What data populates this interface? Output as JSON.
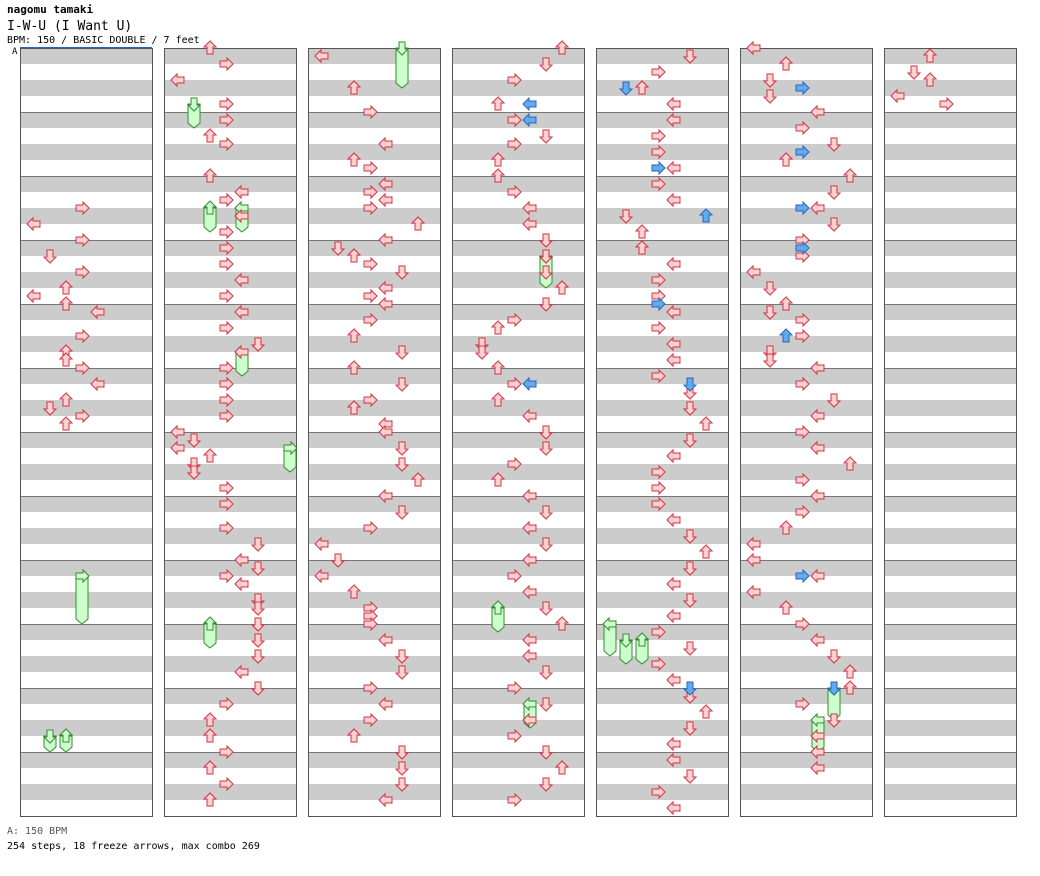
{
  "header": {
    "artist": "nagomu tamaki",
    "title": "I-W-U (I Want U)",
    "meta": "BPM: 150 / BASIC DOUBLE / 7 feet"
  },
  "bpm_marker": "A",
  "footer": {
    "bpm_legend": "A: 150 BPM",
    "stats": "254 steps, 18 freeze arrows, max combo 269"
  },
  "colors": {
    "stripe": "#cccccc",
    "border": "#555555",
    "arrow_fill": "#ffd0d0",
    "arrow_stroke": "#cc3344",
    "blue_fill": "#66aaee",
    "blue_stroke": "#2266bb",
    "freeze_fill": "#ccffcc",
    "freeze_stroke": "#338833"
  },
  "chart_data": {
    "type": "step-chart",
    "columns": 7,
    "measures_per_column": 12,
    "lanes": [
      "P1-Left",
      "P1-Down",
      "P1-Up",
      "P1-Right",
      "P2-Left",
      "P2-Down",
      "P2-Up",
      "P2-Right"
    ],
    "notes": [
      [
        0,
        20,
        3
      ],
      [
        0,
        22,
        0
      ],
      [
        0,
        24,
        3
      ],
      [
        0,
        26,
        1
      ],
      [
        0,
        28,
        3
      ],
      [
        0,
        30,
        2
      ],
      [
        0,
        31,
        0
      ],
      [
        0,
        32,
        2
      ],
      [
        0,
        33,
        4
      ],
      [
        0,
        36,
        3
      ],
      [
        0,
        38,
        2
      ],
      [
        0,
        39,
        2
      ],
      [
        0,
        40,
        3
      ],
      [
        0,
        42,
        4
      ],
      [
        0,
        44,
        2
      ],
      [
        0,
        45,
        1
      ],
      [
        0,
        46,
        3
      ],
      [
        0,
        47,
        2
      ],
      [
        1,
        0,
        2
      ],
      [
        1,
        2,
        3
      ],
      [
        1,
        4,
        0
      ],
      [
        1,
        7,
        3
      ],
      [
        1,
        9,
        3
      ],
      [
        1,
        11,
        2
      ],
      [
        1,
        12,
        3
      ],
      [
        1,
        16,
        2
      ],
      [
        1,
        18,
        4
      ],
      [
        1,
        19,
        3
      ],
      [
        1,
        21,
        4
      ],
      [
        1,
        23,
        3
      ],
      [
        1,
        25,
        3
      ],
      [
        1,
        27,
        3
      ],
      [
        1,
        29,
        4
      ],
      [
        1,
        31,
        3
      ],
      [
        1,
        33,
        4
      ],
      [
        1,
        35,
        3
      ],
      [
        1,
        37,
        5
      ],
      [
        1,
        38,
        4
      ],
      [
        1,
        40,
        3
      ],
      [
        1,
        42,
        3
      ],
      [
        1,
        44,
        3
      ],
      [
        1,
        46,
        3
      ],
      [
        1,
        48,
        0
      ],
      [
        1,
        49,
        1
      ],
      [
        1,
        50,
        0
      ],
      [
        1,
        51,
        2
      ],
      [
        1,
        52,
        1
      ],
      [
        1,
        53,
        1
      ],
      [
        1,
        55,
        3
      ],
      [
        1,
        57,
        3
      ],
      [
        1,
        60,
        3
      ],
      [
        1,
        62,
        5
      ],
      [
        1,
        64,
        4
      ],
      [
        1,
        65,
        5
      ],
      [
        1,
        66,
        3
      ],
      [
        1,
        67,
        4
      ],
      [
        1,
        69,
        5
      ],
      [
        1,
        70,
        5
      ],
      [
        1,
        72,
        5
      ],
      [
        1,
        74,
        5
      ],
      [
        1,
        76,
        5
      ],
      [
        1,
        78,
        4
      ],
      [
        1,
        80,
        5
      ],
      [
        1,
        82,
        3
      ],
      [
        1,
        84,
        2
      ],
      [
        1,
        86,
        2
      ],
      [
        1,
        88,
        3
      ],
      [
        1,
        90,
        2
      ],
      [
        1,
        92,
        3
      ],
      [
        1,
        94,
        2
      ],
      [
        2,
        1,
        0
      ],
      [
        2,
        5,
        2
      ],
      [
        2,
        8,
        3
      ],
      [
        2,
        12,
        4
      ],
      [
        2,
        14,
        2
      ],
      [
        2,
        15,
        3
      ],
      [
        2,
        17,
        4
      ],
      [
        2,
        18,
        3
      ],
      [
        2,
        19,
        4
      ],
      [
        2,
        20,
        3
      ],
      [
        2,
        22,
        6
      ],
      [
        2,
        24,
        4
      ],
      [
        2,
        25,
        1
      ],
      [
        2,
        26,
        2
      ],
      [
        2,
        27,
        3
      ],
      [
        2,
        28,
        5
      ],
      [
        2,
        30,
        4
      ],
      [
        2,
        31,
        3
      ],
      [
        2,
        32,
        4
      ],
      [
        2,
        34,
        3
      ],
      [
        2,
        36,
        2
      ],
      [
        2,
        38,
        5
      ],
      [
        2,
        40,
        2
      ],
      [
        2,
        42,
        5
      ],
      [
        2,
        44,
        3
      ],
      [
        2,
        45,
        2
      ],
      [
        2,
        47,
        4
      ],
      [
        2,
        48,
        4
      ],
      [
        2,
        50,
        5
      ],
      [
        2,
        52,
        5
      ],
      [
        2,
        54,
        6
      ],
      [
        2,
        56,
        4
      ],
      [
        2,
        58,
        5
      ],
      [
        2,
        60,
        3
      ],
      [
        2,
        62,
        0
      ],
      [
        2,
        64,
        1
      ],
      [
        2,
        66,
        0
      ],
      [
        2,
        68,
        2
      ],
      [
        2,
        70,
        3
      ],
      [
        2,
        71,
        3
      ],
      [
        2,
        72,
        3
      ],
      [
        2,
        74,
        4
      ],
      [
        2,
        76,
        5
      ],
      [
        2,
        78,
        5
      ],
      [
        2,
        80,
        3
      ],
      [
        2,
        82,
        4
      ],
      [
        2,
        84,
        3
      ],
      [
        2,
        86,
        2
      ],
      [
        2,
        88,
        5
      ],
      [
        2,
        90,
        5
      ],
      [
        2,
        92,
        5
      ],
      [
        2,
        94,
        4
      ],
      [
        3,
        0,
        6
      ],
      [
        3,
        2,
        5
      ],
      [
        3,
        4,
        3
      ],
      [
        3,
        7,
        2
      ],
      [
        3,
        9,
        3
      ],
      [
        3,
        11,
        5
      ],
      [
        3,
        12,
        3
      ],
      [
        3,
        14,
        2
      ],
      [
        3,
        16,
        2
      ],
      [
        3,
        18,
        3
      ],
      [
        3,
        20,
        4
      ],
      [
        3,
        22,
        4
      ],
      [
        3,
        24,
        5
      ],
      [
        3,
        26,
        5
      ],
      [
        3,
        28,
        5
      ],
      [
        3,
        30,
        6
      ],
      [
        3,
        32,
        5
      ],
      [
        3,
        34,
        3
      ],
      [
        3,
        35,
        2
      ],
      [
        3,
        37,
        1
      ],
      [
        3,
        38,
        1
      ],
      [
        3,
        40,
        2
      ],
      [
        3,
        42,
        3
      ],
      [
        3,
        44,
        2
      ],
      [
        3,
        46,
        4
      ],
      [
        3,
        48,
        5
      ],
      [
        3,
        50,
        5
      ],
      [
        3,
        52,
        3
      ],
      [
        3,
        54,
        2
      ],
      [
        3,
        56,
        4
      ],
      [
        3,
        58,
        5
      ],
      [
        3,
        60,
        4
      ],
      [
        3,
        62,
        5
      ],
      [
        3,
        64,
        4
      ],
      [
        3,
        66,
        3
      ],
      [
        3,
        68,
        4
      ],
      [
        3,
        70,
        5
      ],
      [
        3,
        72,
        6
      ],
      [
        3,
        74,
        4
      ],
      [
        3,
        76,
        4
      ],
      [
        3,
        78,
        5
      ],
      [
        3,
        80,
        3
      ],
      [
        3,
        82,
        5
      ],
      [
        3,
        84,
        4
      ],
      [
        3,
        86,
        3
      ],
      [
        3,
        88,
        5
      ],
      [
        3,
        90,
        6
      ],
      [
        3,
        92,
        5
      ],
      [
        3,
        94,
        3
      ],
      [
        4,
        1,
        5
      ],
      [
        4,
        3,
        3
      ],
      [
        4,
        5,
        2
      ],
      [
        4,
        7,
        4
      ],
      [
        4,
        9,
        4
      ],
      [
        4,
        11,
        3
      ],
      [
        4,
        13,
        3
      ],
      [
        4,
        15,
        4
      ],
      [
        4,
        17,
        3
      ],
      [
        4,
        19,
        4
      ],
      [
        4,
        21,
        1
      ],
      [
        4,
        23,
        2
      ],
      [
        4,
        25,
        2
      ],
      [
        4,
        27,
        4
      ],
      [
        4,
        29,
        3
      ],
      [
        4,
        31,
        3
      ],
      [
        4,
        33,
        4
      ],
      [
        4,
        35,
        3
      ],
      [
        4,
        37,
        4
      ],
      [
        4,
        39,
        4
      ],
      [
        4,
        41,
        3
      ],
      [
        4,
        43,
        5
      ],
      [
        4,
        45,
        5
      ],
      [
        4,
        47,
        6
      ],
      [
        4,
        49,
        5
      ],
      [
        4,
        51,
        4
      ],
      [
        4,
        53,
        3
      ],
      [
        4,
        55,
        3
      ],
      [
        4,
        57,
        3
      ],
      [
        4,
        59,
        4
      ],
      [
        4,
        61,
        5
      ],
      [
        4,
        63,
        6
      ],
      [
        4,
        65,
        5
      ],
      [
        4,
        67,
        4
      ],
      [
        4,
        69,
        5
      ],
      [
        4,
        71,
        4
      ],
      [
        4,
        73,
        3
      ],
      [
        4,
        75,
        5
      ],
      [
        4,
        77,
        3
      ],
      [
        4,
        79,
        4
      ],
      [
        4,
        81,
        5
      ],
      [
        4,
        83,
        6
      ],
      [
        4,
        85,
        5
      ],
      [
        4,
        87,
        4
      ],
      [
        4,
        89,
        4
      ],
      [
        4,
        91,
        5
      ],
      [
        4,
        93,
        3
      ],
      [
        4,
        95,
        4
      ],
      [
        5,
        0,
        0
      ],
      [
        5,
        2,
        2
      ],
      [
        5,
        4,
        1
      ],
      [
        5,
        6,
        1
      ],
      [
        5,
        8,
        4
      ],
      [
        5,
        10,
        3
      ],
      [
        5,
        12,
        5
      ],
      [
        5,
        14,
        2
      ],
      [
        5,
        16,
        6
      ],
      [
        5,
        18,
        5
      ],
      [
        5,
        20,
        4
      ],
      [
        5,
        22,
        5
      ],
      [
        5,
        24,
        3
      ],
      [
        5,
        26,
        3
      ],
      [
        5,
        28,
        0
      ],
      [
        5,
        30,
        1
      ],
      [
        5,
        32,
        2
      ],
      [
        5,
        33,
        1
      ],
      [
        5,
        34,
        3
      ],
      [
        5,
        36,
        3
      ],
      [
        5,
        38,
        1
      ],
      [
        5,
        39,
        1
      ],
      [
        5,
        40,
        4
      ],
      [
        5,
        42,
        3
      ],
      [
        5,
        44,
        5
      ],
      [
        5,
        46,
        4
      ],
      [
        5,
        48,
        3
      ],
      [
        5,
        50,
        4
      ],
      [
        5,
        52,
        6
      ],
      [
        5,
        54,
        3
      ],
      [
        5,
        56,
        4
      ],
      [
        5,
        58,
        3
      ],
      [
        5,
        60,
        2
      ],
      [
        5,
        62,
        0
      ],
      [
        5,
        64,
        0
      ],
      [
        5,
        66,
        4
      ],
      [
        5,
        68,
        0
      ],
      [
        5,
        70,
        2
      ],
      [
        5,
        72,
        3
      ],
      [
        5,
        74,
        4
      ],
      [
        5,
        76,
        5
      ],
      [
        5,
        78,
        6
      ],
      [
        5,
        80,
        6
      ],
      [
        5,
        82,
        3
      ],
      [
        5,
        84,
        5
      ],
      [
        5,
        86,
        4
      ],
      [
        5,
        88,
        4
      ],
      [
        5,
        90,
        4
      ],
      [
        6,
        1,
        2
      ],
      [
        6,
        3,
        1
      ],
      [
        6,
        4,
        2
      ],
      [
        6,
        6,
        0
      ],
      [
        6,
        7,
        3
      ]
    ],
    "freezes": [
      [
        0,
        66,
        3,
        72,
        2
      ],
      [
        0,
        86,
        1,
        88,
        1
      ],
      [
        0,
        86,
        2,
        88,
        2
      ],
      [
        1,
        7,
        1,
        10,
        1
      ],
      [
        1,
        20,
        2,
        23,
        2
      ],
      [
        1,
        20,
        4,
        23,
        4
      ],
      [
        1,
        38,
        4,
        41,
        4
      ],
      [
        1,
        50,
        7,
        53,
        7
      ],
      [
        1,
        72,
        2,
        75,
        2
      ],
      [
        2,
        0,
        5,
        5,
        5
      ],
      [
        3,
        26,
        5,
        30,
        5
      ],
      [
        3,
        70,
        2,
        73,
        2
      ],
      [
        3,
        82,
        4,
        85,
        4
      ],
      [
        4,
        72,
        0,
        76,
        0
      ],
      [
        4,
        74,
        1,
        77,
        1
      ],
      [
        4,
        74,
        2,
        77,
        2
      ],
      [
        5,
        80,
        5,
        84,
        5
      ],
      [
        5,
        84,
        4,
        88,
        4
      ]
    ],
    "blue_arrows": [
      [
        4,
        5,
        1
      ],
      [
        5,
        5,
        3
      ],
      [
        3,
        7,
        4
      ],
      [
        3,
        9,
        4
      ],
      [
        4,
        15,
        3
      ],
      [
        5,
        13,
        3
      ],
      [
        4,
        21,
        6
      ],
      [
        5,
        20,
        3
      ],
      [
        5,
        25,
        3
      ],
      [
        4,
        32,
        3
      ],
      [
        3,
        42,
        4
      ],
      [
        5,
        36,
        2
      ],
      [
        4,
        42,
        5
      ],
      [
        5,
        66,
        3
      ],
      [
        4,
        80,
        5
      ],
      [
        5,
        80,
        5
      ]
    ]
  }
}
